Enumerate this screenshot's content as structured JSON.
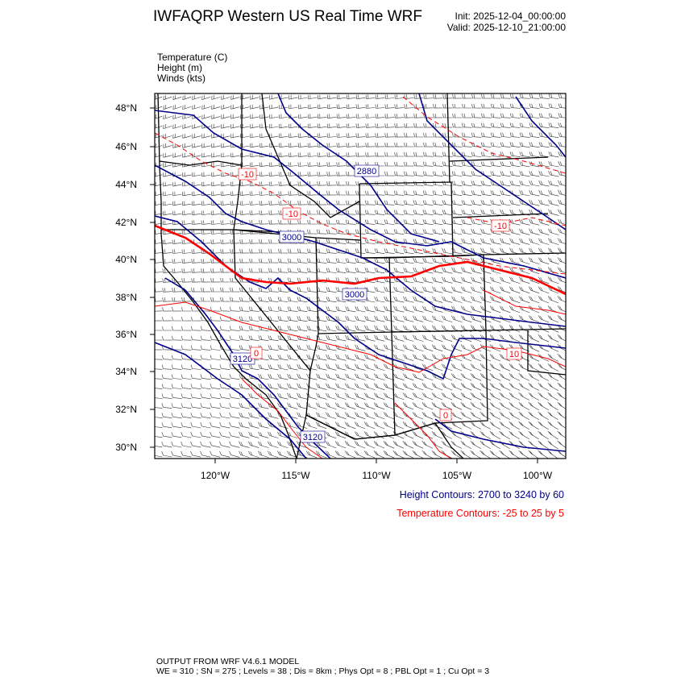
{
  "header": {
    "title": "IWFAQRP Western US Real Time WRF",
    "init": "Init: 2025-12-04_00:00:00",
    "valid": "Valid: 2025-12-10_21:00:00"
  },
  "variables": [
    "Temperature   (C)",
    "Height   (m)",
    "Winds   (kts)"
  ],
  "map": {
    "lat_ticks": [
      "48°N",
      "46°N",
      "44°N",
      "42°N",
      "40°N",
      "38°N",
      "36°N",
      "34°N",
      "32°N",
      "30°N"
    ],
    "lon_ticks": [
      "120°W",
      "115°W",
      "110°W",
      "105°W",
      "100°W"
    ],
    "height_labels": [
      "2880",
      "3000",
      "3000",
      "3120",
      "3120"
    ],
    "temperature_labels": [
      "-10",
      "-10",
      "-10",
      "0",
      "10",
      "0"
    ],
    "colors": {
      "height": "#00008b",
      "temperature": "#ff0000",
      "barbs": "#000000",
      "borders": "#000000"
    }
  },
  "legend": {
    "height": "Height Contours: 2700 to 3240 by 60",
    "temperature": "Temperature Contours: -25 to 25 by 5"
  },
  "footer": {
    "line1": "OUTPUT FROM WRF V4.6.1 MODEL",
    "line2": "WE = 310 ; SN = 275 ; Levels = 38 ; Dis = 8km ; Phys Opt = 8 ; PBL Opt = 1 ; Cu Opt = 3"
  }
}
